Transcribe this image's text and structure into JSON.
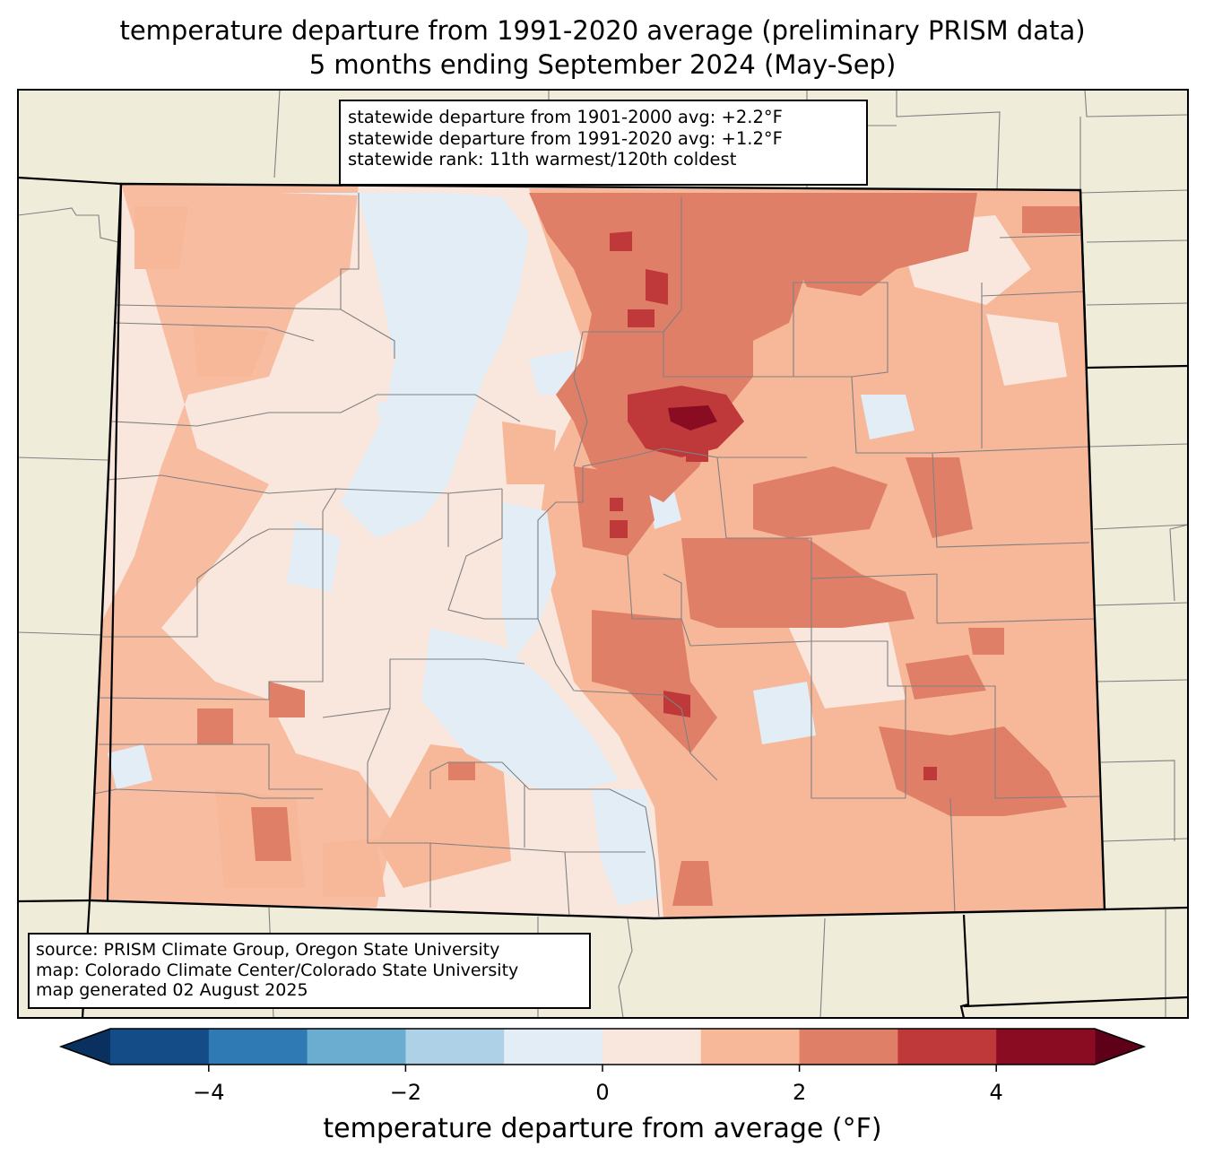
{
  "title": {
    "line1": "temperature departure from 1991-2020 average (preliminary PRISM data)",
    "line2": "5 months ending September 2024 (May-Sep)"
  },
  "stats_box": {
    "line1": "statewide departure from 1901-2000 avg: +2.2°F",
    "line2": "statewide departure from 1991-2020 avg: +1.2°F",
    "line3": "statewide rank: 11th warmest/120th coldest"
  },
  "source_box": {
    "line1": "source: PRISM Climate Group, Oregon State University",
    "line2": "map: Colorado Climate Center/Colorado State University",
    "line3": "map generated 02 August 2025"
  },
  "colorbar": {
    "label": "temperature departure from average (°F)",
    "ticks": [
      {
        "value": -4,
        "label": "−4"
      },
      {
        "value": -2,
        "label": "−2"
      },
      {
        "value": 0,
        "label": "0"
      },
      {
        "value": 2,
        "label": "2"
      },
      {
        "value": 4,
        "label": "4"
      }
    ],
    "min": -5,
    "max": 5,
    "bins": [
      {
        "from": -5,
        "to": -4,
        "color": "#144c87"
      },
      {
        "from": -4,
        "to": -3,
        "color": "#2f79b5"
      },
      {
        "from": -3,
        "to": -2,
        "color": "#6aadd0"
      },
      {
        "from": -2,
        "to": -1,
        "color": "#afd1e7"
      },
      {
        "from": -1,
        "to": 0,
        "color": "#e2edf6"
      },
      {
        "from": 0,
        "to": 1,
        "color": "#f9e6dd"
      },
      {
        "from": 1,
        "to": 2,
        "color": "#f7b799"
      },
      {
        "from": 2,
        "to": 3,
        "color": "#e07f67"
      },
      {
        "from": 3,
        "to": 4,
        "color": "#c0393a"
      },
      {
        "from": 4,
        "to": 5,
        "color": "#8a0c23"
      }
    ],
    "under_color": "#0a3060",
    "over_color": "#5e0118"
  },
  "colors": {
    "land": "#efedda",
    "state_border": "#000000",
    "county_border": "#808080"
  }
}
